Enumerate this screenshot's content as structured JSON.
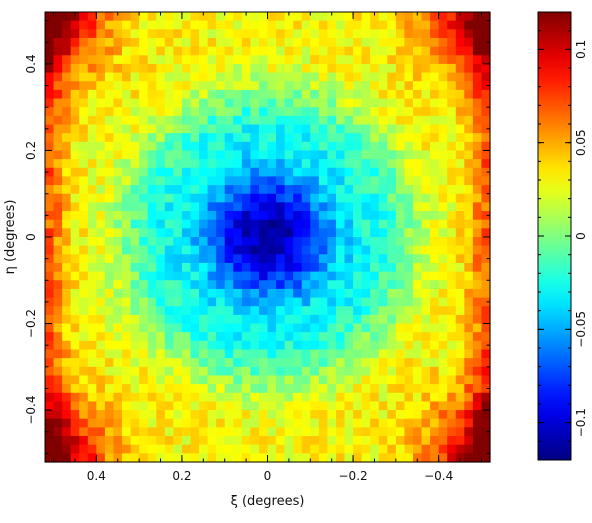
{
  "chart_data": {
    "type": "heatmap",
    "title": "",
    "xlabel": "ξ (degrees)",
    "ylabel": "η (degrees)",
    "x_reversed": true,
    "xlim": [
      0.52,
      -0.52
    ],
    "ylim": [
      -0.52,
      0.52
    ],
    "x_ticks": [
      {
        "value": 0.4,
        "label": "0.4"
      },
      {
        "value": 0.2,
        "label": "0.2"
      },
      {
        "value": 0,
        "label": "0"
      },
      {
        "value": -0.2,
        "label": "−0.2"
      },
      {
        "value": -0.4,
        "label": "−0.4"
      }
    ],
    "y_ticks": [
      {
        "value": 0.4,
        "label": "0.4"
      },
      {
        "value": 0.2,
        "label": "0.2"
      },
      {
        "value": 0,
        "label": "0"
      },
      {
        "value": -0.2,
        "label": "−0.2"
      },
      {
        "value": -0.4,
        "label": "−0.4"
      }
    ],
    "colorbar": {
      "range": [
        -0.12,
        0.12
      ],
      "colormap": "jet",
      "low_color": "#ff0000",
      "high_color": "#00007f",
      "ticks": [
        {
          "value": 0.1,
          "label": "0.1"
        },
        {
          "value": 0.05,
          "label": "0.05"
        },
        {
          "value": 0,
          "label": "0"
        },
        {
          "value": -0.05,
          "label": "−0.05"
        },
        {
          "value": -0.1,
          "label": "−0.1"
        }
      ]
    },
    "grid": false,
    "cells_per_side": 52,
    "field_model": {
      "central_min": -0.11,
      "peak_offsets": [
        {
          "xi": -0.05,
          "eta": 0.08,
          "value": -0.112
        },
        {
          "xi": 0.1,
          "eta": -0.08,
          "value": -0.108
        }
      ],
      "corner_value": 0.115,
      "background_value": 0.03
    }
  }
}
